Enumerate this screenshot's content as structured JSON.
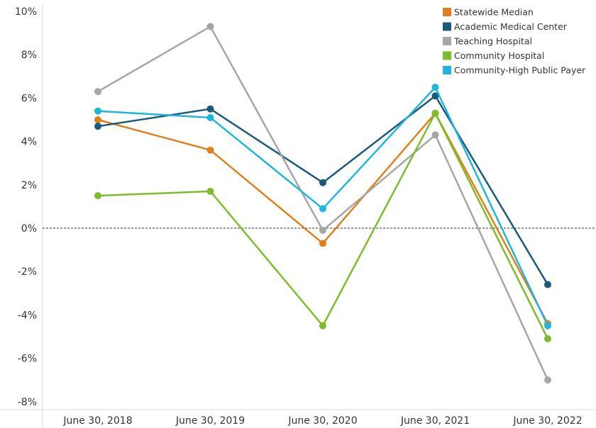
{
  "chart_data": {
    "type": "line",
    "categories": [
      "June 30, 2018",
      "June 30, 2019",
      "June 30, 2020",
      "June 30, 2021",
      "June 30, 2022"
    ],
    "ylim": [
      -8.5,
      10
    ],
    "y_ticks": [
      10,
      8,
      6,
      4,
      2,
      0,
      -2,
      -4,
      -6,
      -8
    ],
    "y_tick_labels": [
      "10%",
      "8%",
      "6%",
      "4%",
      "2%",
      "0%",
      "-2%",
      "-4%",
      "-6%",
      "-8%"
    ],
    "grid": false,
    "zero_line": "dashed",
    "legend_placement": "top-right",
    "series": [
      {
        "name": "Statewide Median",
        "color": "#e0801c",
        "values": [
          5.0,
          3.6,
          -0.7,
          5.3,
          -4.4
        ]
      },
      {
        "name": "Academic Medical Center",
        "color": "#1b5a7a",
        "values": [
          4.7,
          5.5,
          2.1,
          6.1,
          -2.6
        ]
      },
      {
        "name": "Teaching Hospital",
        "color": "#a6a6a6",
        "values": [
          6.3,
          9.3,
          -0.1,
          4.3,
          -7.0
        ]
      },
      {
        "name": "Community Hospital",
        "color": "#7dbd2c",
        "values": [
          1.5,
          1.7,
          -4.5,
          5.3,
          -5.1
        ]
      },
      {
        "name": "Community-High Public Payer",
        "color": "#1fb6db",
        "values": [
          5.4,
          5.1,
          0.9,
          6.5,
          -4.5
        ]
      }
    ]
  }
}
